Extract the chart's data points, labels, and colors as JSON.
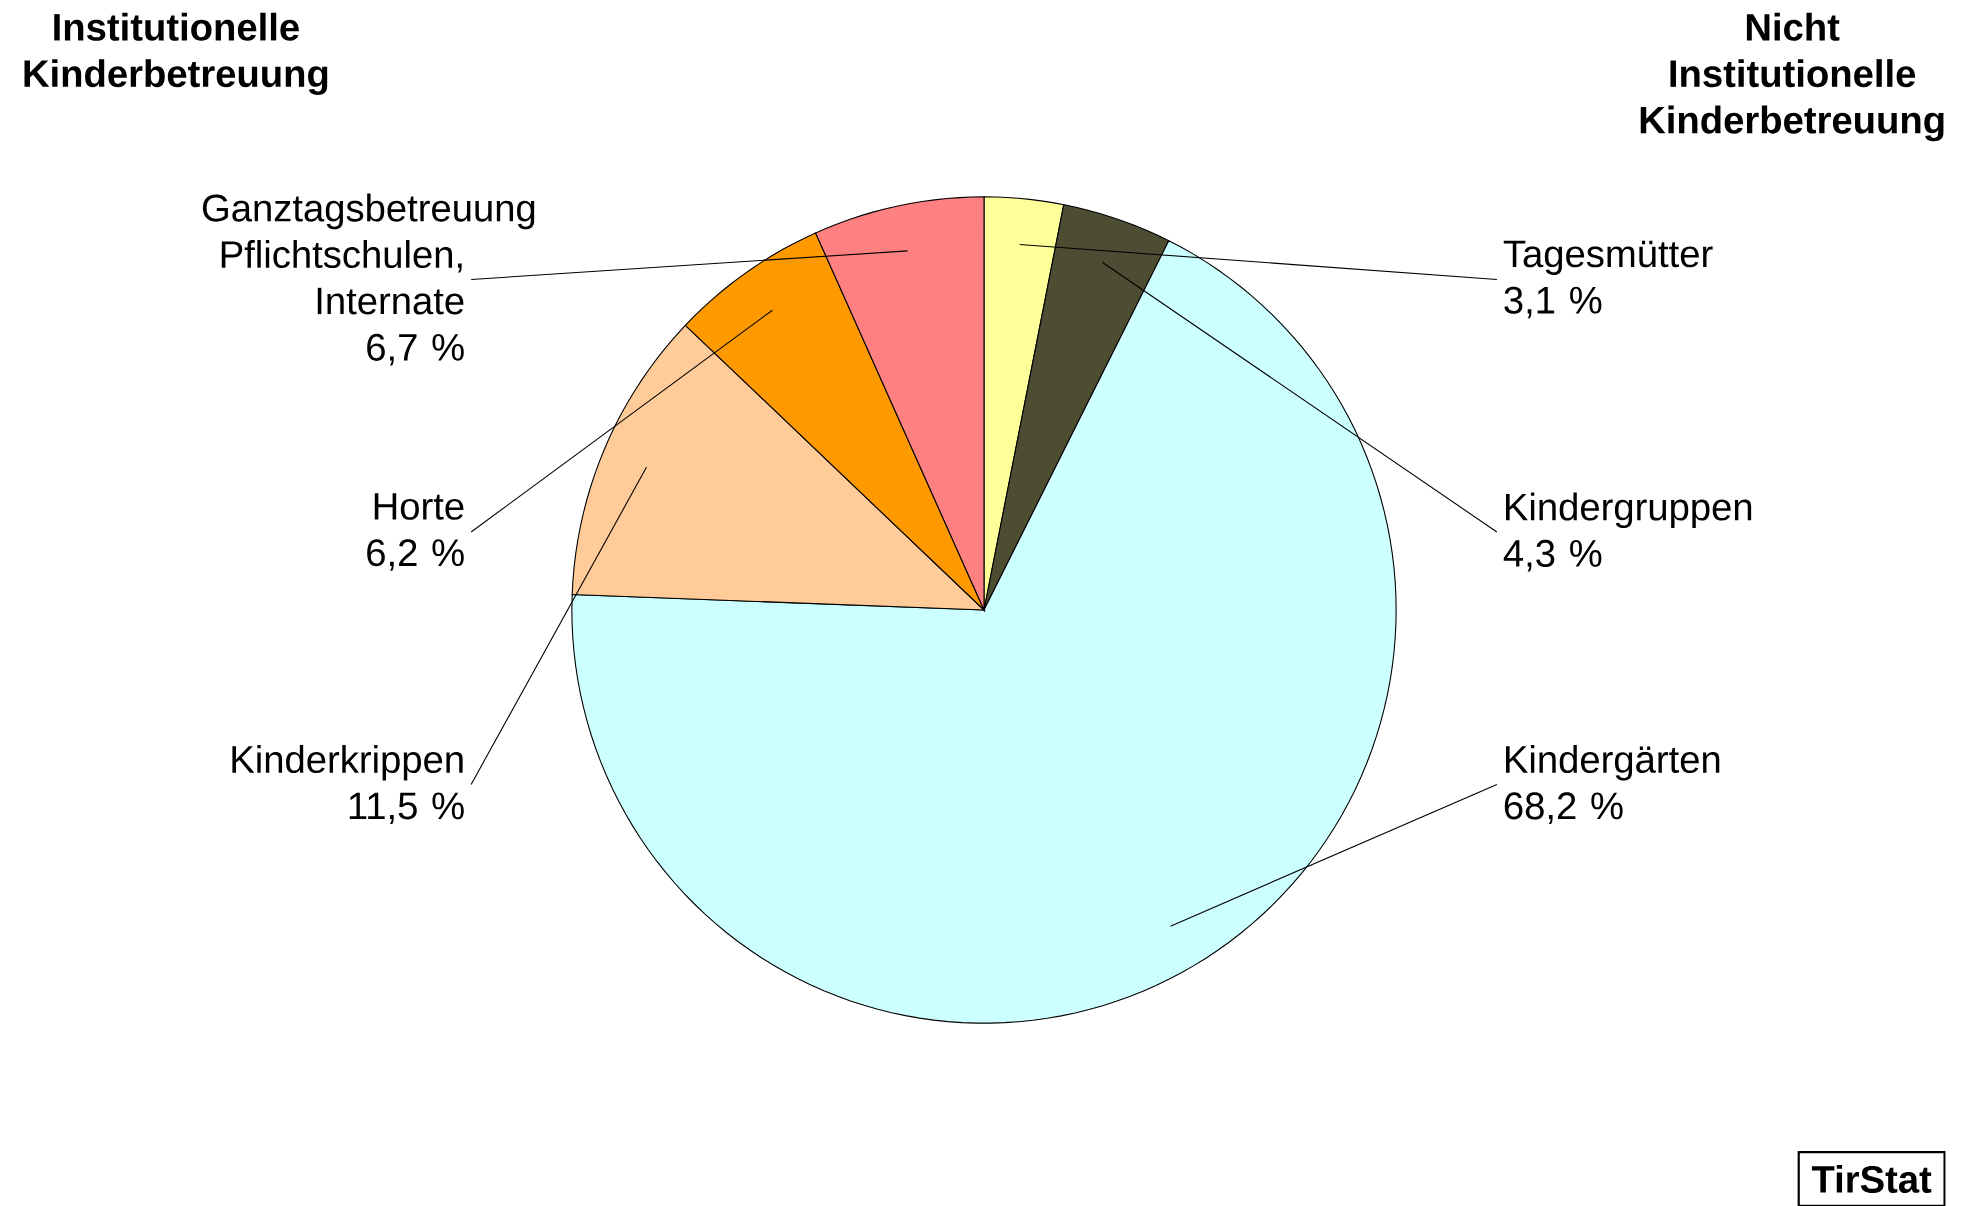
{
  "chart_data": {
    "type": "pie",
    "categories": [
      "Tagesmütter",
      "Kindergruppen",
      "Kindergärten",
      "Kinderkrippen",
      "Horte",
      "Ganztagsbetreuung Pflichtschulen, Internate"
    ],
    "values": [
      3.1,
      4.3,
      68.2,
      11.5,
      6.2,
      6.7
    ],
    "value_labels": [
      "3,1 %",
      "4,3 %",
      "68,2 %",
      "11,5 %",
      "6,2 %",
      "6,7 %"
    ],
    "colors": [
      "#ffff99",
      "#4d4d33",
      "#ccffff",
      "#ffcc99",
      "#ff9900",
      "#ff8080"
    ],
    "annotations": [
      "Institutionelle Kinderbetreuung",
      "Nicht Institutionelle Kinderbetreuung",
      "TirStat"
    ]
  }
}
